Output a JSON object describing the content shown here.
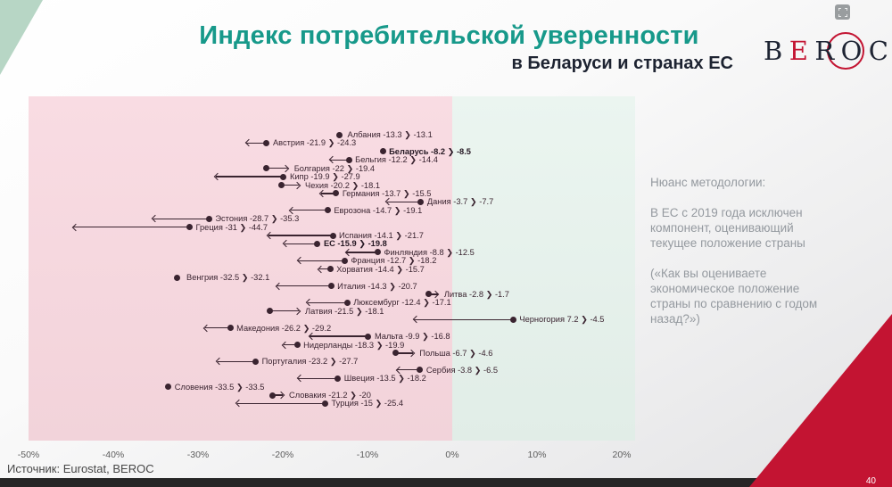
{
  "header": {
    "title": "Индекс потребительской уверенности",
    "subtitle": "в Беларуси и странах ЕС"
  },
  "logo": {
    "letters": [
      {
        "ch": "B",
        "red": false
      },
      {
        "ch": "E",
        "red": true
      },
      {
        "ch": "R",
        "red": false
      },
      {
        "ch": "O",
        "red": false
      },
      {
        "ch": "C",
        "red": false
      }
    ]
  },
  "icons": {
    "top_right": "fullscreen"
  },
  "note": {
    "heading": "Нюанс методологии:",
    "para1": "В ЕС с 2019 года исключен компонент, оценивающий текущее положение страны",
    "para2": "(«Как вы оцениваете экономическое положение страны по сравнению с годом назад?»)"
  },
  "footer": {
    "source": "Источник: Eurostat, BEROC",
    "page_number": "40"
  },
  "colors": {
    "accent_teal": "#17998a",
    "navy": "#1d2331",
    "pink_zone": "#f8dae1",
    "mint_zone": "#e7f2ec",
    "marker": "#3a2430",
    "brand_red": "#c31432",
    "note_gray": "#94999f"
  },
  "chart_data": {
    "type": "scatter",
    "subtype": "dumbbell-arrow",
    "title": "Индекс потребительской уверенности",
    "subtitle": "в Беларуси и странах ЕС",
    "x_ticks": [
      "-50%",
      "-40%",
      "-30%",
      "-20%",
      "-10%",
      "0%",
      "10%",
      "20%"
    ],
    "x_range": [
      -50,
      21.5
    ],
    "negative_zone_color": "#f8dae1",
    "positive_zone_color": "#e7f2ec",
    "points": [
      {
        "name": "Албания",
        "from": -13.3,
        "to": -13.1,
        "bold": false
      },
      {
        "name": "Австрия",
        "from": -21.9,
        "to": -24.3,
        "bold": false
      },
      {
        "name": "Беларусь",
        "from": -8.2,
        "to": -8.5,
        "bold": true
      },
      {
        "name": "Бельгия",
        "from": -12.2,
        "to": -14.4,
        "bold": false
      },
      {
        "name": "Болгария",
        "from": -22,
        "to": -19.4,
        "bold": false
      },
      {
        "name": "Кипр",
        "from": -19.9,
        "to": -27.9,
        "bold": false
      },
      {
        "name": "Чехия",
        "from": -20.2,
        "to": -18.1,
        "bold": false
      },
      {
        "name": "Германия",
        "from": -13.7,
        "to": -15.5,
        "bold": false
      },
      {
        "name": "Дания",
        "from": -3.7,
        "to": -7.7,
        "bold": false
      },
      {
        "name": "Еврозона",
        "from": -14.7,
        "to": -19.1,
        "bold": false
      },
      {
        "name": "Эстония",
        "from": -28.7,
        "to": -35.3,
        "bold": false
      },
      {
        "name": "Греция",
        "from": -31,
        "to": -44.7,
        "bold": false
      },
      {
        "name": "Испания",
        "from": -14.1,
        "to": -21.7,
        "bold": false
      },
      {
        "name": "ЕС",
        "from": -15.9,
        "to": -19.8,
        "bold": true
      },
      {
        "name": "Финляндия",
        "from": -8.8,
        "to": -12.5,
        "bold": false
      },
      {
        "name": "Франция",
        "from": -12.7,
        "to": -18.2,
        "bold": false
      },
      {
        "name": "Хорватия",
        "from": -14.4,
        "to": -15.7,
        "bold": false
      },
      {
        "name": "Венгрия",
        "from": -32.5,
        "to": -32.1,
        "bold": false
      },
      {
        "name": "Италия",
        "from": -14.3,
        "to": -20.7,
        "bold": false
      },
      {
        "name": "Литва",
        "from": -2.8,
        "to": -1.7,
        "bold": false
      },
      {
        "name": "Люксембург",
        "from": -12.4,
        "to": -17.1,
        "bold": false
      },
      {
        "name": "Латвия",
        "from": -21.5,
        "to": -18.1,
        "bold": false
      },
      {
        "name": "Черногория",
        "from": 7.2,
        "to": -4.5,
        "bold": false
      },
      {
        "name": "Македония",
        "from": -26.2,
        "to": -29.2,
        "bold": false
      },
      {
        "name": "Мальта",
        "from": -9.9,
        "to": -16.8,
        "bold": false
      },
      {
        "name": "Нидерланды",
        "from": -18.3,
        "to": -19.9,
        "bold": false
      },
      {
        "name": "Польша",
        "from": -6.7,
        "to": -4.6,
        "bold": false
      },
      {
        "name": "Португалия",
        "from": -23.2,
        "to": -27.7,
        "bold": false
      },
      {
        "name": "Сербия",
        "from": -3.8,
        "to": -6.5,
        "bold": false
      },
      {
        "name": "Швеция",
        "from": -13.5,
        "to": -18.2,
        "bold": false
      },
      {
        "name": "Словения",
        "from": -33.5,
        "to": -33.5,
        "bold": false
      },
      {
        "name": "Словакия",
        "from": -21.2,
        "to": -20,
        "bold": false
      },
      {
        "name": "Турция",
        "from": -15,
        "to": -25.4,
        "bold": false
      }
    ]
  }
}
